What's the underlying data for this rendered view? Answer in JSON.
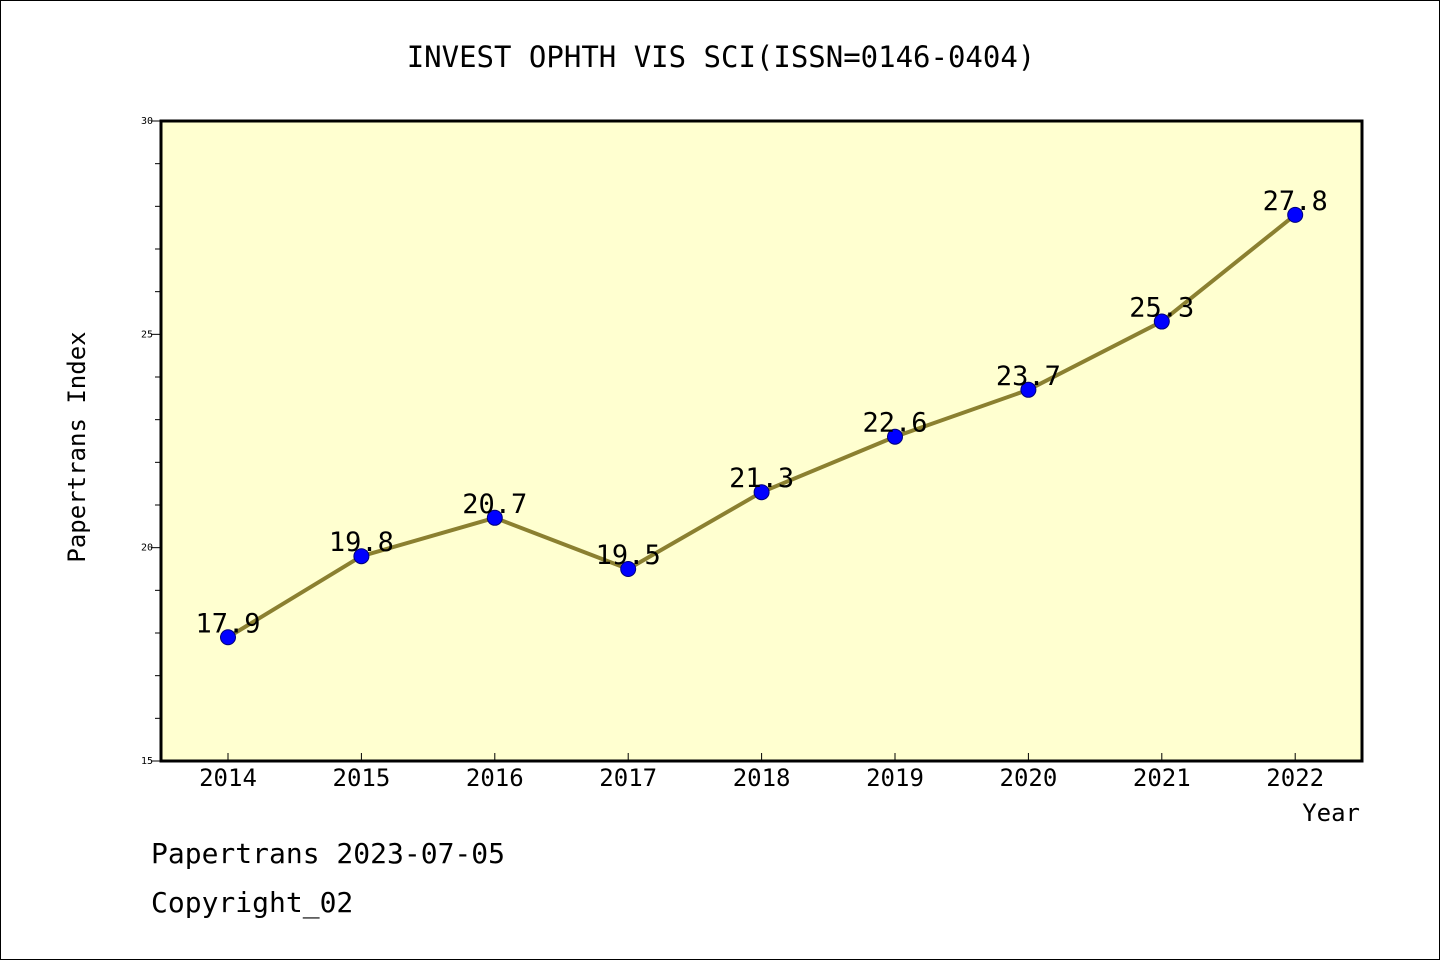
{
  "chart_data": {
    "type": "line",
    "title": "INVEST OPHTH VIS SCI(ISSN=0146-0404)",
    "xlabel": "Year",
    "ylabel": "Papertrans Index",
    "categories": [
      "2014",
      "2015",
      "2016",
      "2017",
      "2018",
      "2019",
      "2020",
      "2021",
      "2022"
    ],
    "series": [
      {
        "values": [
          17.9,
          19.8,
          20.7,
          19.5,
          21.3,
          22.6,
          23.7,
          25.3,
          27.8
        ]
      }
    ],
    "data_labels": [
      "17.9",
      "19.8",
      "20.7",
      "19.5",
      "21.3",
      "22.6",
      "23.7",
      "25.3",
      "27.8"
    ],
    "ylim": [
      15,
      30
    ],
    "yticks": [
      15,
      20,
      25,
      30
    ],
    "grid": false,
    "legend": "none",
    "colors": {
      "plot_background": "#FFFFD0",
      "line": "#8B8030",
      "marker": "#0000FF"
    }
  },
  "footer": {
    "line1": "Papertrans 2023-07-05",
    "line2": "Copyright_02"
  }
}
